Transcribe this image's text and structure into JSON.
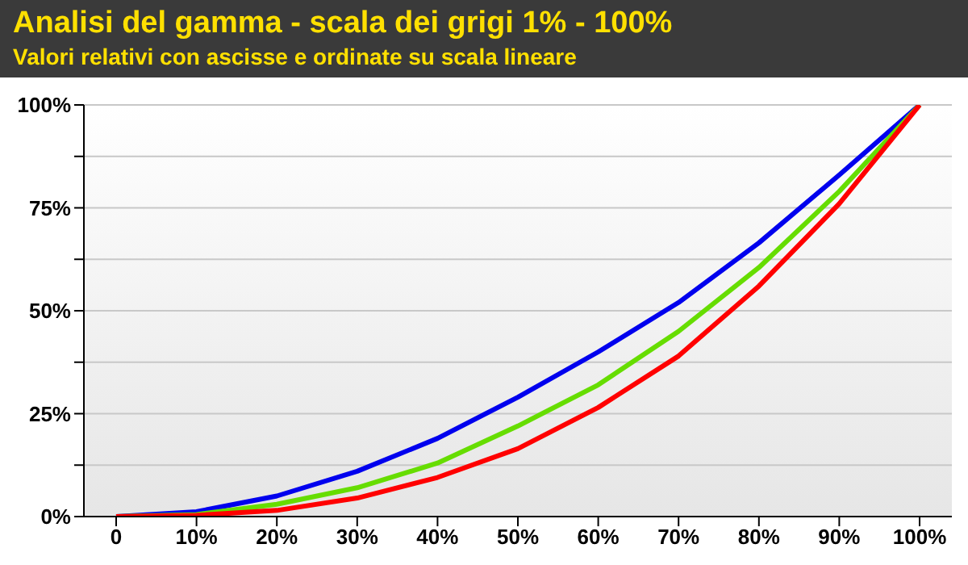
{
  "chart_data": {
    "type": "line",
    "title": "Analisi del gamma - scala dei grigi 1% - 100%",
    "subtitle": "Valori relativi con ascisse e ordinate su scala lineare",
    "categories": [
      "0",
      "10%",
      "20%",
      "30%",
      "40%",
      "50%",
      "60%",
      "70%",
      "80%",
      "90%",
      "100%"
    ],
    "series": [
      {
        "color": "#0000ee",
        "values": [
          0,
          1.2,
          5,
          11,
          19,
          29,
          40,
          52,
          66.5,
          83,
          100
        ]
      },
      {
        "color": "#66dd00",
        "values": [
          0,
          0.5,
          3,
          7,
          13,
          22,
          32,
          45,
          60.5,
          79,
          100
        ]
      },
      {
        "color": "#ff0000",
        "values": [
          0,
          0.3,
          1.5,
          4.5,
          9.5,
          16.5,
          26.5,
          39,
          56,
          76,
          100
        ]
      }
    ],
    "ylim": [
      0,
      100
    ],
    "yticks": [
      {
        "value": 0,
        "label": "0%"
      },
      {
        "value": 12.5,
        "label": null
      },
      {
        "value": 25,
        "label": "25%"
      },
      {
        "value": 37.5,
        "label": null
      },
      {
        "value": 50,
        "label": "50%"
      },
      {
        "value": 62.5,
        "label": null
      },
      {
        "value": 75,
        "label": "75%"
      },
      {
        "value": 87.5,
        "label": null
      },
      {
        "value": 100,
        "label": "100%"
      }
    ],
    "grid": "y",
    "legend": false,
    "marker": "none",
    "line_style": "solid"
  }
}
